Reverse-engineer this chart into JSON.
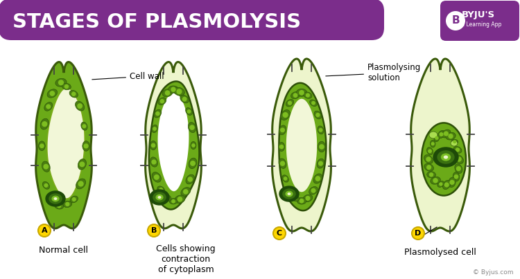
{
  "title": "STAGES OF PLASMOLYSIS",
  "title_bg_color": "#7B2D8B",
  "title_text_color": "#FFFFFF",
  "bg_color": "#FFFFFF",
  "vacuole_color": "#F2F7D8",
  "solution_color": "#EDF5CC",
  "cytoplasm_dark": "#4A7C10",
  "cytoplasm_mid": "#6BAA18",
  "cytoplasm_light": "#8DC820",
  "wall_edge": "#555555",
  "chloro_dark": "#2E5A08",
  "chloro_mid": "#4A7C10",
  "chloro_light": "#7DBE20",
  "nucleus_outer": "#1E4A08",
  "nucleus_mid": "#3A7010",
  "nucleus_light": "#7ABE25",
  "nucleus_nucleolus": "#EDF5CC",
  "label_bg": "#FFD700",
  "label_edge": "#C8A800",
  "caption_A": "Normal cell",
  "caption_B": "Cells showing\ncontraction\nof cytoplasm",
  "caption_D": "Plasmolysed cell",
  "annot_cell_wall": "Cell wall",
  "annot_solution": "Plasmolysing\nsolution",
  "byju_color": "#7B2D8B",
  "copyright": "© Byjus.com"
}
